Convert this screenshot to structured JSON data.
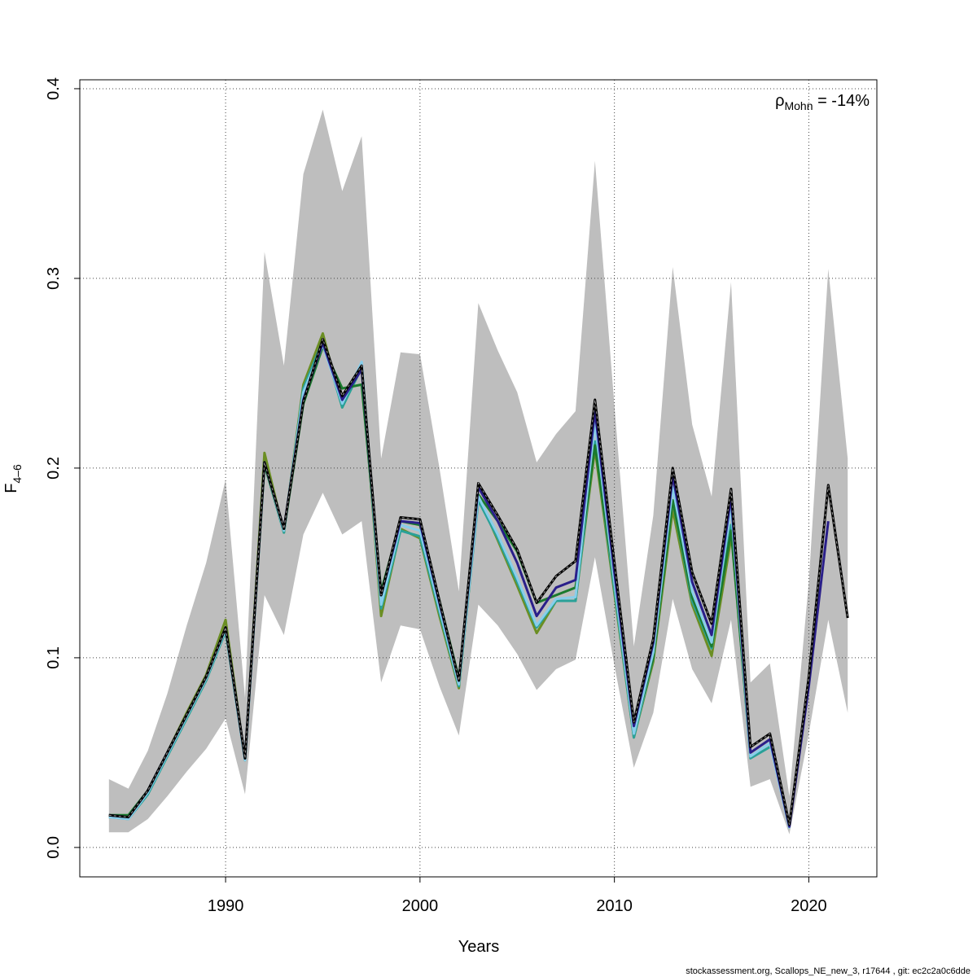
{
  "chart_data": {
    "type": "line",
    "ylabel": {
      "text": "F",
      "subscript": "4–6"
    },
    "xlabel": "Years",
    "annotation": {
      "symbol": "ρ",
      "subscript": "Mohn",
      "text": " = -14%"
    },
    "footer": "stockassessment.org, Scallops_NE_new_3, r17644 , git: ec2c2a0c6dde",
    "x": [
      1984,
      1985,
      1986,
      1987,
      1988,
      1989,
      1990,
      1991,
      1992,
      1993,
      1994,
      1995,
      1996,
      1997,
      1998,
      1999,
      2000,
      2001,
      2002,
      2003,
      2004,
      2005,
      2006,
      2007,
      2008,
      2009,
      2010,
      2011,
      2012,
      2013,
      2014,
      2015,
      2016,
      2017,
      2018,
      2019,
      2020,
      2021,
      2022
    ],
    "xlim": [
      1982.5,
      2023.5
    ],
    "xticks": [
      1990,
      2000,
      2010,
      2020
    ],
    "ylim": [
      -0.0155,
      0.4047
    ],
    "yticks": [
      {
        "value": 0,
        "label": "0.0"
      },
      0.1,
      0.2,
      0.3,
      0.4
    ],
    "grid": true,
    "ci_color": "#bebebe",
    "ci_upper": [
      0.036,
      0.031,
      0.051,
      0.081,
      0.117,
      0.15,
      0.194,
      0.079,
      0.314,
      0.254,
      0.355,
      0.389,
      0.346,
      0.375,
      0.205,
      0.261,
      0.26,
      0.2,
      0.135,
      0.287,
      0.262,
      0.24,
      0.203,
      0.218,
      0.23,
      0.362,
      0.233,
      0.106,
      0.175,
      0.306,
      0.223,
      0.185,
      0.298,
      0.087,
      0.097,
      0.027,
      0.14,
      0.305,
      0.205
    ],
    "ci_lower": [
      0.008,
      0.008,
      0.015,
      0.027,
      0.04,
      0.052,
      0.068,
      0.028,
      0.133,
      0.112,
      0.165,
      0.187,
      0.165,
      0.172,
      0.087,
      0.117,
      0.115,
      0.085,
      0.059,
      0.128,
      0.117,
      0.102,
      0.083,
      0.094,
      0.099,
      0.153,
      0.096,
      0.042,
      0.071,
      0.131,
      0.094,
      0.076,
      0.12,
      0.032,
      0.036,
      0.007,
      0.06,
      0.12,
      0.071
    ],
    "series": [
      {
        "color": "#6b8e23",
        "values": [
          0.017,
          0.016,
          0.029,
          0.05,
          0.071,
          0.091,
          0.12,
          0.046,
          0.208,
          0.166,
          0.244,
          0.271,
          0.232,
          0.254,
          0.122,
          0.168,
          0.163,
          0.122,
          0.084,
          0.185,
          0.162,
          0.138,
          0.113,
          0.13,
          0.13,
          0.21,
          0.134,
          0.058,
          0.098,
          0.178,
          0.128,
          0.101,
          0.163,
          null,
          null,
          null,
          null,
          null,
          null
        ]
      },
      {
        "color": "#2aa198",
        "values": [
          0.016,
          0.015,
          0.028,
          0.048,
          0.068,
          0.088,
          0.114,
          0.046,
          0.202,
          0.166,
          0.242,
          0.267,
          0.232,
          0.253,
          0.126,
          0.167,
          0.164,
          0.124,
          0.085,
          0.183,
          0.163,
          0.14,
          0.116,
          0.13,
          0.13,
          0.214,
          0.136,
          0.058,
          0.1,
          0.183,
          0.13,
          0.105,
          0.17,
          0.047,
          0.053,
          null,
          null,
          null,
          null
        ]
      },
      {
        "color": "#1b7a2e",
        "values": [
          0.017,
          0.017,
          0.03,
          0.05,
          0.069,
          0.089,
          0.115,
          0.047,
          0.202,
          0.167,
          0.234,
          0.264,
          0.242,
          0.244,
          0.135,
          0.172,
          0.17,
          0.13,
          0.089,
          0.186,
          0.172,
          0.156,
          0.129,
          0.133,
          0.137,
          0.212,
          0.14,
          0.061,
          0.1,
          0.183,
          0.132,
          0.106,
          0.167,
          0.05,
          null,
          null,
          null,
          null,
          null
        ]
      },
      {
        "color": "#87ceeb",
        "values": [
          0.016,
          0.015,
          0.029,
          0.049,
          0.069,
          0.089,
          0.115,
          0.046,
          0.203,
          0.167,
          0.24,
          0.265,
          0.234,
          0.256,
          0.128,
          0.17,
          0.167,
          0.126,
          0.086,
          0.185,
          0.165,
          0.142,
          0.117,
          0.131,
          0.132,
          0.224,
          0.14,
          0.06,
          0.103,
          0.19,
          0.135,
          0.108,
          0.18,
          0.048,
          0.055,
          0.01,
          null,
          null,
          null
        ]
      },
      {
        "color": "#2a1f8a",
        "values": [
          0.017,
          0.016,
          0.03,
          0.05,
          0.07,
          0.09,
          0.116,
          0.047,
          0.203,
          0.168,
          0.236,
          0.266,
          0.236,
          0.252,
          0.133,
          0.172,
          0.171,
          0.129,
          0.088,
          0.19,
          0.172,
          0.15,
          0.122,
          0.137,
          0.141,
          0.23,
          0.145,
          0.064,
          0.108,
          0.196,
          0.14,
          0.112,
          0.185,
          0.05,
          0.057,
          0.011,
          0.085,
          0.172,
          null
        ]
      },
      {
        "color": "#000000",
        "dashed": true,
        "values": [
          0.017,
          0.016,
          0.03,
          0.05,
          0.07,
          0.09,
          0.116,
          0.047,
          0.203,
          0.168,
          0.235,
          0.268,
          0.238,
          0.254,
          0.133,
          0.174,
          0.173,
          0.13,
          0.088,
          0.192,
          0.175,
          0.157,
          0.129,
          0.143,
          0.151,
          0.236,
          0.15,
          0.066,
          0.11,
          0.2,
          0.145,
          0.118,
          0.189,
          0.053,
          0.06,
          0.012,
          0.09,
          0.191,
          0.121
        ]
      }
    ]
  }
}
